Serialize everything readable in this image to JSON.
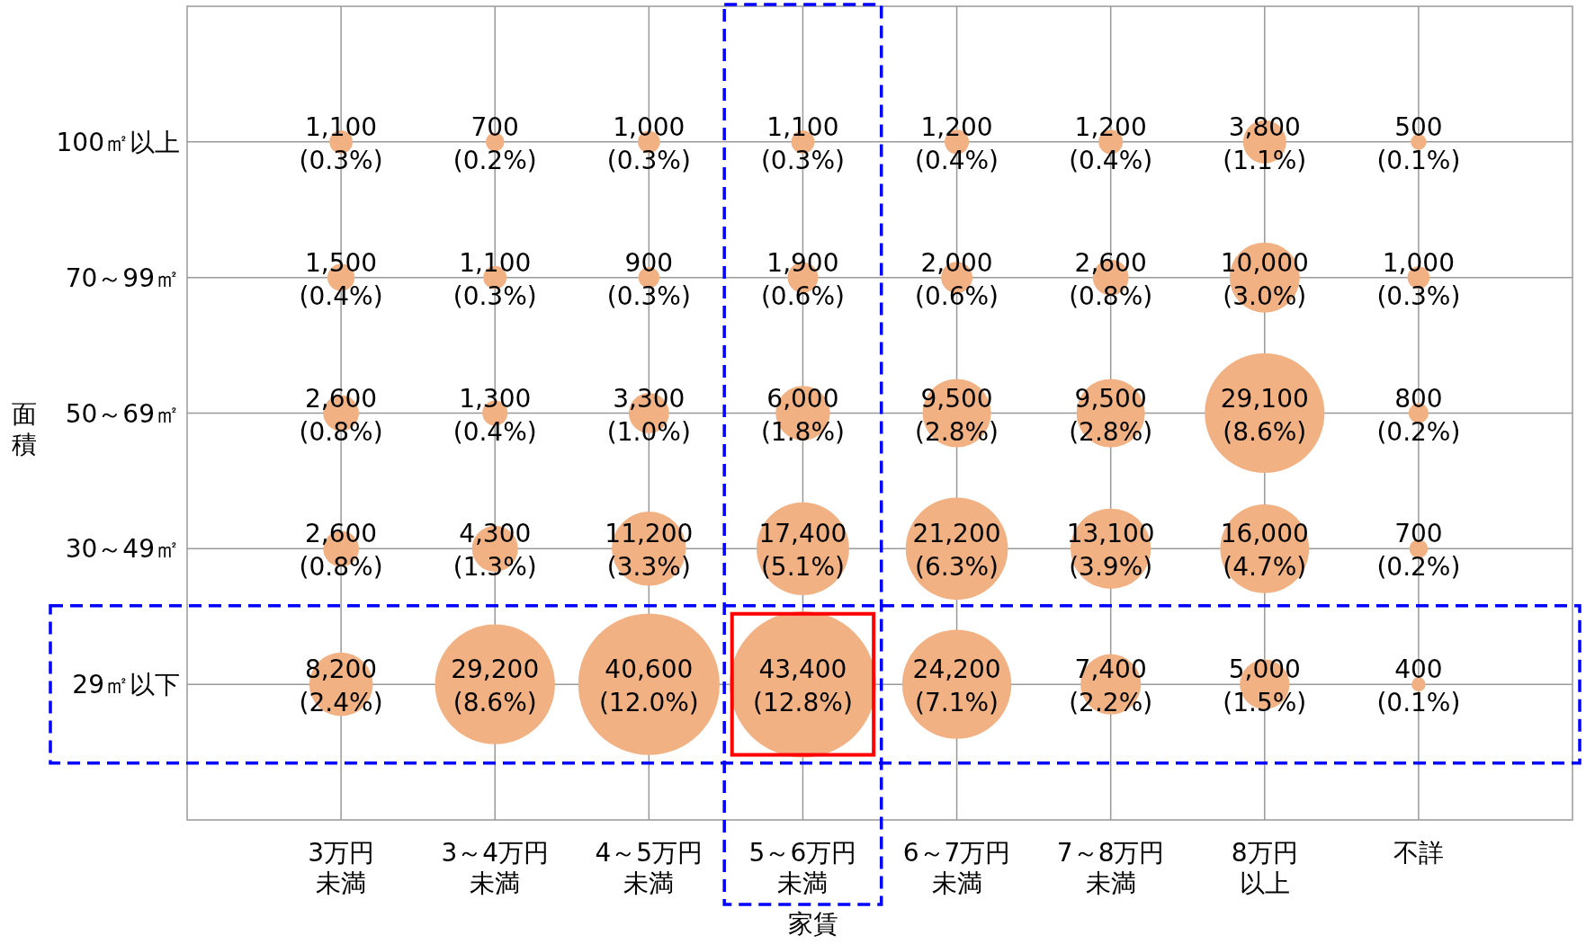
{
  "chart_data": {
    "type": "heatmap",
    "xlabel": "家賃",
    "ylabel": "面積",
    "color": "#f2b183",
    "grid": true,
    "categories": [
      "3万円未満",
      "3～4万円未満",
      "4～5万円未満",
      "5～6万円未満",
      "6～7万円未満",
      "7～8万円未満",
      "8万円以上",
      "不詳"
    ],
    "y_categories": [
      "100㎡以上",
      "70～99㎡",
      "50～69㎡",
      "30～49㎡",
      "29㎡以下"
    ],
    "cells": [
      [
        1100,
        700,
        1000,
        1100,
        1200,
        1200,
        3800,
        500
      ],
      [
        1500,
        1100,
        900,
        1900,
        2000,
        2600,
        10000,
        1000
      ],
      [
        2600,
        1300,
        3300,
        6000,
        9500,
        9500,
        29100,
        800
      ],
      [
        2600,
        4300,
        11200,
        17400,
        21200,
        13100,
        16000,
        700
      ],
      [
        8200,
        29200,
        40600,
        43400,
        24200,
        7400,
        5000,
        400
      ]
    ],
    "cell_labels": [
      [
        "1,100",
        "700",
        "1,000",
        "1,100",
        "1,200",
        "1,200",
        "3,800",
        "500"
      ],
      [
        "1,500",
        "1,100",
        "900",
        "1,900",
        "2,000",
        "2,600",
        "10,000",
        "1,000"
      ],
      [
        "2,600",
        "1,300",
        "3,300",
        "6,000",
        "9,500",
        "9,500",
        "29,100",
        "800"
      ],
      [
        "2,600",
        "4,300",
        "11,200",
        "17,400",
        "21,200",
        "13,100",
        "16,000",
        "700"
      ],
      [
        "8,200",
        "29,200",
        "40,600",
        "43,400",
        "24,200",
        "7,400",
        "5,000",
        "400"
      ]
    ],
    "annotations": [
      "(0.3%)",
      "(0.2%)",
      "(0.3%)",
      "(0.3%)",
      "(0.4%)",
      "(0.4%)",
      "(1.1%)",
      "(0.1%)",
      "(0.4%)",
      "(0.3%)",
      "(0.3%)",
      "(0.6%)",
      "(0.6%)",
      "(0.8%)",
      "(3.0%)",
      "(0.3%)",
      "(0.8%)",
      "(0.4%)",
      "(1.0%)",
      "(1.8%)",
      "(2.8%)",
      "(2.8%)",
      "(8.6%)",
      "(0.2%)",
      "(0.8%)",
      "(1.3%)",
      "(3.3%)",
      "(5.1%)",
      "(6.3%)",
      "(3.9%)",
      "(4.7%)",
      "(0.2%)",
      "(2.4%)",
      "(8.6%)",
      "(12.0%)",
      "(12.8%)",
      "(7.1%)",
      "(2.2%)",
      "(1.5%)",
      "(0.1%)"
    ]
  }
}
